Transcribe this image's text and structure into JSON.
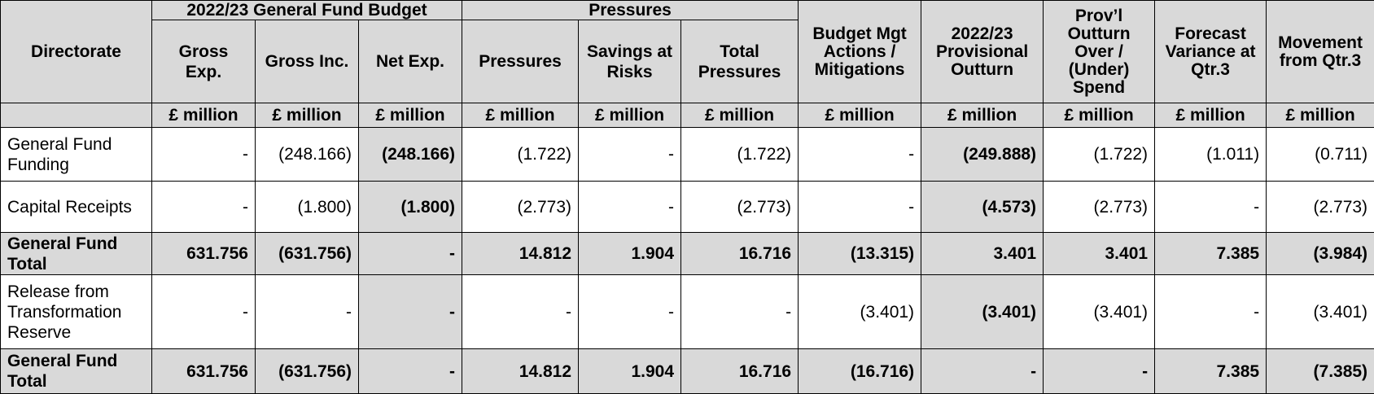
{
  "groups": {
    "budget": "2022/23 General Fund Budget",
    "pressures": "Pressures"
  },
  "headers": {
    "directorate": "Directorate",
    "gross_exp": "Gross Exp.",
    "gross_inc": "Gross Inc.",
    "net_exp": "Net Exp.",
    "pressures": "Pressures",
    "savings": "Savings at Risks",
    "total_pressures": "Total Pressures",
    "budget_mgt": "Budget Mgt Actions / Mitigations",
    "prov_outturn": "2022/23 Provisional Outturn",
    "over_under": "Prov’l Outturn Over / (Under) Spend",
    "forecast_var": "Forecast Variance at Qtr.3",
    "movement": "Movement from Qtr.3"
  },
  "unit": "£ million",
  "rows": [
    {
      "label": "General Fund Funding",
      "cells": [
        "-",
        "(248.166)",
        "(248.166)",
        "(1.722)",
        "-",
        "(1.722)",
        "-",
        "(249.888)",
        "(1.722)",
        "(1.011)",
        "(0.711)"
      ]
    },
    {
      "label": "Capital Receipts",
      "cells": [
        "-",
        "(1.800)",
        "(1.800)",
        "(2.773)",
        "-",
        "(2.773)",
        "-",
        "(4.573)",
        "(2.773)",
        "-",
        "(2.773)"
      ]
    },
    {
      "label": "General Fund Total",
      "cells": [
        "631.756",
        "(631.756)",
        "-",
        "14.812",
        "1.904",
        "16.716",
        "(13.315)",
        "3.401",
        "3.401",
        "7.385",
        "(3.984)"
      ]
    },
    {
      "label": "Release from Transformation Reserve",
      "cells": [
        "-",
        "-",
        "-",
        "-",
        "-",
        "-",
        "(3.401)",
        "(3.401)",
        "(3.401)",
        "-",
        "(3.401)"
      ]
    },
    {
      "label": "General Fund Total",
      "cells": [
        "631.756",
        "(631.756)",
        "-",
        "14.812",
        "1.904",
        "16.716",
        "(16.716)",
        "-",
        "-",
        "7.385",
        "(7.385)"
      ]
    }
  ]
}
